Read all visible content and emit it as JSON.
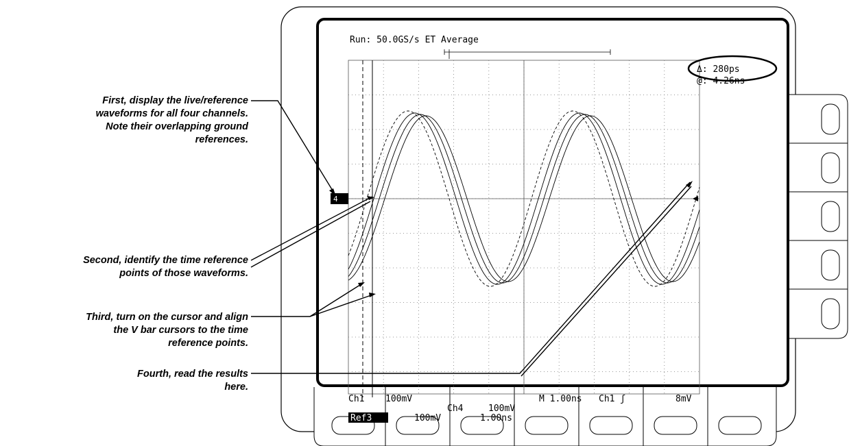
{
  "screen": {
    "acquisition": "Run: 50.0GS/s ET Average",
    "cursor_delta": "Δ: 280ps",
    "cursor_at": "@: 4.26ns",
    "ground_marker": "4",
    "readout_row1": [
      "Ch1",
      "100mV",
      "M 1.00ns",
      "Ch1 ʃ",
      "8mV"
    ],
    "readout_row2": [
      "Ch4",
      "100mV"
    ],
    "readout_row3": [
      "Ref3",
      "100mV",
      "1.00ns"
    ]
  },
  "callouts": [
    {
      "lines": [
        "First, display the live/reference",
        "waveforms for all four channels.",
        "Note their overlapping ground",
        "references."
      ]
    },
    {
      "lines": [
        "Second, identify the time reference",
        "points of those waveforms."
      ]
    },
    {
      "lines": [
        "Third, turn on the cursor and align",
        "the V bar cursors to the time",
        "reference points."
      ]
    },
    {
      "lines": [
        "Fourth, read the results",
        "here."
      ]
    }
  ]
}
